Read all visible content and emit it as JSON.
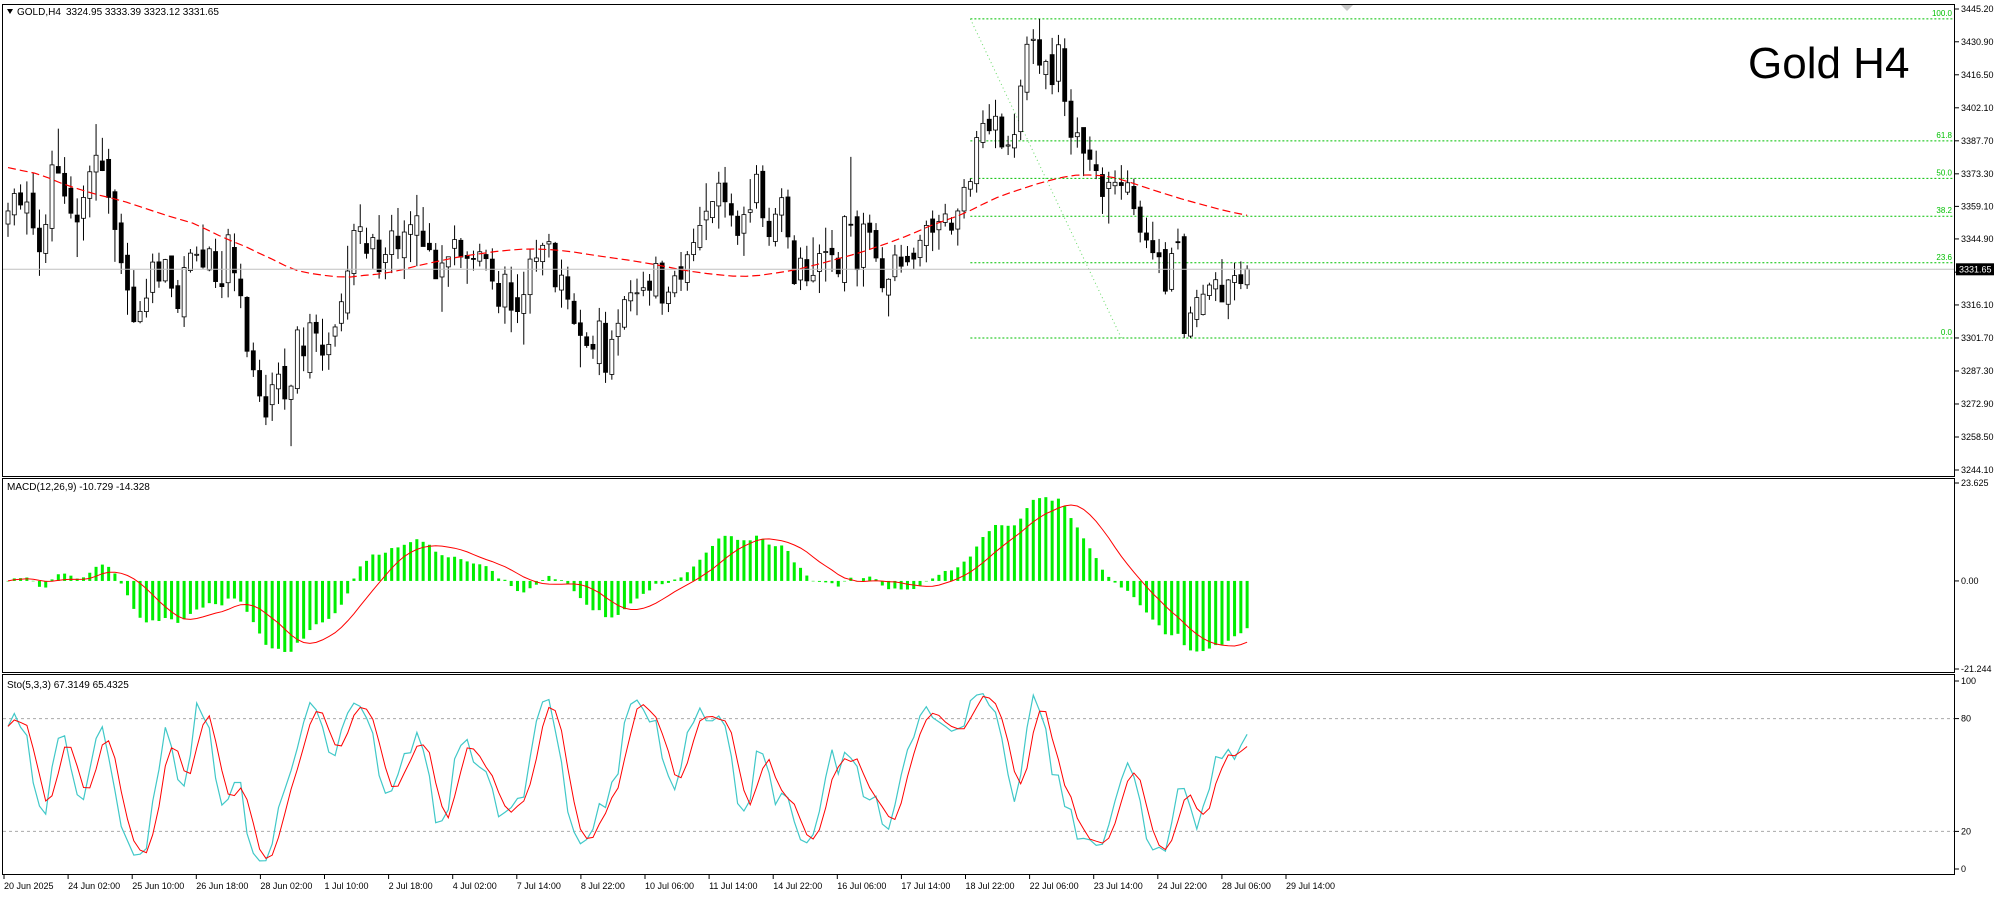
{
  "symbol_header": {
    "symbol": "GOLD,H4",
    "ohlc": "3324.95 3333.39 3323.12 3331.65"
  },
  "chart_title": "Gold H4",
  "current_price": "3331.65",
  "price_axis": [
    "3445.20",
    "3430.90",
    "3416.50",
    "3402.10",
    "3387.70",
    "3373.30",
    "3359.10",
    "3344.90",
    "3330.40",
    "3316.10",
    "3301.70",
    "3287.30",
    "3272.90",
    "3258.50",
    "3244.10"
  ],
  "fib_levels": [
    {
      "label": "100.0",
      "price": 3440.9
    },
    {
      "label": "61.8",
      "price": 3387.7
    },
    {
      "label": "50.0",
      "price": 3371.3
    },
    {
      "label": "38.2",
      "price": 3354.8
    },
    {
      "label": "23.6",
      "price": 3334.5
    },
    {
      "label": "0.0",
      "price": 3301.7
    }
  ],
  "macd": {
    "label": "MACD(12,26,9) -10.729 -14.328",
    "axis": [
      "23.625",
      "0.00",
      "-21.244"
    ]
  },
  "stoch": {
    "label": "Sto(5,3,3) 67.3149 65.4325",
    "axis": [
      "100",
      "80",
      "20",
      "0"
    ]
  },
  "time_axis": [
    "20 Jun 2025",
    "24 Jun 02:00",
    "25 Jun 10:00",
    "26 Jun 18:00",
    "28 Jun 02:00",
    "1 Jul 10:00",
    "2 Jul 18:00",
    "4 Jul 02:00",
    "7 Jul 14:00",
    "8 Jul 22:00",
    "10 Jul 06:00",
    "11 Jul 14:00",
    "14 Jul 22:00",
    "16 Jul 06:00",
    "17 Jul 14:00",
    "18 Jul 22:00",
    "22 Jul 06:00",
    "23 Jul 14:00",
    "24 Jul 22:00",
    "28 Jul 06:00",
    "29 Jul 14:00"
  ],
  "colors": {
    "bull_candle": "#ffffff",
    "bear_candle": "#000000",
    "ma": "#ff0000",
    "fib": "#00c000",
    "macd_hist": "#00ee00",
    "macd_signal": "#ff0000",
    "sto_main": "#40c8c8",
    "sto_signal": "#ff0000",
    "grid_level": "#aaaaaa"
  },
  "chart_data": {
    "type": "candlestick",
    "title": "Gold H4",
    "ylim": [
      3244.1,
      3445.2
    ],
    "points": [
      [
        3351.4,
        3360.7,
        3345.8,
        3357.1
      ],
      [
        3355.4,
        3366.9,
        3350.8,
        3364.7
      ],
      [
        3365.0,
        3368.7,
        3357.7,
        3359.7
      ],
      [
        3356.2,
        3370.0,
        3346.8,
        3361.0
      ],
      [
        3364.9,
        3373.5,
        3346.7,
        3349.7
      ],
      [
        3349.6,
        3357.7,
        3328.8,
        3339.3
      ],
      [
        3338.6,
        3355.6,
        3334.4,
        3351.2
      ],
      [
        3349.5,
        3383.4,
        3343.8,
        3377.2
      ],
      [
        3376.5,
        3393.0,
        3373.9,
        3373.6
      ],
      [
        3373.5,
        3380.6,
        3360.2,
        3363.6
      ],
      [
        3367.0,
        3372.2,
        3353.8,
        3356.1
      ],
      [
        3355.3,
        3362.6,
        3337.0,
        3352.3
      ],
      [
        3353.9,
        3368.2,
        3344.2,
        3363.0
      ],
      [
        3362.6,
        3376.9,
        3354.3,
        3374.2
      ],
      [
        3374.1,
        3395.0,
        3361.6,
        3381.4
      ],
      [
        3378.9,
        3389.0,
        3374.5,
        3374.7
      ],
      [
        3379.6,
        3384.2,
        3355.9,
        3363.0
      ],
      [
        3365.5,
        3366.5,
        3334.9,
        3349.0
      ],
      [
        3351.9,
        3355.9,
        3329.6,
        3334.5
      ],
      [
        3337.8,
        3343.2,
        3311.8,
        3322.6
      ],
      [
        3323.9,
        3331.3,
        3308.3,
        3308.8
      ],
      [
        3308.8,
        3317.8,
        3308.1,
        3313.3
      ],
      [
        3313.2,
        3327.5,
        3310.6,
        3319.1
      ],
      [
        3321.6,
        3338.5,
        3316.9,
        3334.8
      ],
      [
        3334.9,
        3338.9,
        3323.6,
        3326.5
      ],
      [
        3326.6,
        3336.2,
        3325.8,
        3335.9
      ],
      [
        3337.5,
        3337.5,
        3319.5,
        3323.4
      ],
      [
        3324.5,
        3327.0,
        3312.6,
        3314.5
      ],
      [
        3310.9,
        3337.4,
        3306.5,
        3332.4
      ],
      [
        3331.1,
        3340.5,
        3330.2,
        3338.7
      ],
      [
        3337.9,
        3341.6,
        3335.1,
        3338.2
      ],
      [
        3340.1,
        3351.2,
        3332.0,
        3332.6
      ],
      [
        3331.4,
        3341.6,
        3330.8,
        3340.6
      ],
      [
        3339.4,
        3345.0,
        3323.5,
        3326.3
      ],
      [
        3325.4,
        3339.6,
        3319.1,
        3324.1
      ],
      [
        3325.8,
        3349.3,
        3319.4,
        3346.7
      ],
      [
        3341.2,
        3347.3,
        3322.1,
        3330.1
      ],
      [
        3327.4,
        3334.1,
        3314.7,
        3320.1
      ],
      [
        3319.4,
        3319.9,
        3293.3,
        3295.9
      ],
      [
        3296.1,
        3299.7,
        3284.7,
        3287.8
      ],
      [
        3287.5,
        3292.2,
        3273.8,
        3276.4
      ],
      [
        3276.1,
        3285.6,
        3263.7,
        3267.2
      ],
      [
        3272.6,
        3286.6,
        3265.5,
        3281.3
      ],
      [
        3279.5,
        3291.0,
        3272.9,
        3285.9
      ],
      [
        3289.3,
        3297.1,
        3270.4,
        3275.1
      ],
      [
        3274.9,
        3281.3,
        3254.5,
        3280.7
      ],
      [
        3279.6,
        3306.8,
        3277.4,
        3305.2
      ],
      [
        3298.2,
        3306.3,
        3287.2,
        3293.9
      ],
      [
        3286.6,
        3312.2,
        3284.0,
        3308.3
      ],
      [
        3308.5,
        3311.9,
        3295.6,
        3303.8
      ],
      [
        3298.6,
        3310.1,
        3287.4,
        3294.2
      ],
      [
        3294.4,
        3304.1,
        3287.8,
        3298.9
      ],
      [
        3302.5,
        3307.7,
        3297.9,
        3306.5
      ],
      [
        3308.1,
        3321.1,
        3304.6,
        3317.5
      ],
      [
        3312.6,
        3341.9,
        3309.7,
        3330.9
      ],
      [
        3329.8,
        3351.5,
        3324.7,
        3348.6
      ],
      [
        3348.2,
        3360.0,
        3342.7,
        3350.2
      ],
      [
        3342.9,
        3349.8,
        3336.3,
        3338.6
      ],
      [
        3340.6,
        3347.1,
        3331.9,
        3345.5
      ],
      [
        3344.4,
        3355.3,
        3327.6,
        3330.6
      ],
      [
        3334.6,
        3341.2,
        3327.3,
        3338.1
      ],
      [
        3338.1,
        3355.4,
        3330.0,
        3348.4
      ],
      [
        3346.1,
        3358.4,
        3336.2,
        3340.6
      ],
      [
        3336.7,
        3353.0,
        3327.4,
        3347.9
      ],
      [
        3346.9,
        3357.0,
        3334.8,
        3351.1
      ],
      [
        3346.5,
        3364.1,
        3333.0,
        3355.0
      ],
      [
        3348.3,
        3358.8,
        3342.6,
        3341.6
      ],
      [
        3343.0,
        3351.8,
        3339.4,
        3340.2
      ],
      [
        3340.0,
        3343.1,
        3327.4,
        3327.5
      ],
      [
        3328.3,
        3342.2,
        3313.1,
        3334.4
      ],
      [
        3332.7,
        3337.2,
        3324.0,
        3337.1
      ],
      [
        3340.8,
        3350.8,
        3333.4,
        3344.6
      ],
      [
        3344.3,
        3345.3,
        3332.2,
        3337.0
      ],
      [
        3337.7,
        3339.5,
        3325.3,
        3336.4
      ],
      [
        3336.4,
        3339.8,
        3331.1,
        3336.2
      ],
      [
        3335.2,
        3342.8,
        3332.9,
        3339.3
      ],
      [
        3338.1,
        3340.2,
        3331.1,
        3336.3
      ],
      [
        3336.1,
        3340.8,
        3322.8,
        3326.5
      ],
      [
        3325.5,
        3330.9,
        3312.5,
        3315.5
      ],
      [
        3315.2,
        3332.9,
        3307.9,
        3329.5
      ],
      [
        3325.8,
        3332.8,
        3304.2,
        3313.8
      ],
      [
        3319.3,
        3329.5,
        3308.2,
        3313.2
      ],
      [
        3312.4,
        3330.6,
        3298.8,
        3320.6
      ],
      [
        3320.6,
        3340.6,
        3312.3,
        3336.1
      ],
      [
        3335.1,
        3344.5,
        3330.6,
        3336.6
      ],
      [
        3335.0,
        3343.2,
        3329.0,
        3342.1
      ],
      [
        3342.7,
        3347.1,
        3336.8,
        3343.7
      ],
      [
        3343.0,
        3343.6,
        3321.6,
        3324.0
      ],
      [
        3322.6,
        3335.9,
        3314.9,
        3329.1
      ],
      [
        3328.4,
        3332.8,
        3314.2,
        3318.6
      ],
      [
        3317.7,
        3321.2,
        3307.4,
        3308.0
      ],
      [
        3308.3,
        3314.0,
        3288.9,
        3302.8
      ],
      [
        3302.2,
        3304.2,
        3297.4,
        3298.4
      ],
      [
        3298.9,
        3302.7,
        3292.6,
        3296.8
      ],
      [
        3290.5,
        3314.8,
        3285.5,
        3309.1
      ],
      [
        3308.1,
        3313.1,
        3282.1,
        3286.7
      ],
      [
        3285.8,
        3305.0,
        3283.5,
        3301.1
      ],
      [
        3302.3,
        3314.2,
        3294.0,
        3308.1
      ],
      [
        3306.4,
        3320.0,
        3305.3,
        3318.4
      ],
      [
        3317.9,
        3326.9,
        3313.3,
        3321.4
      ],
      [
        3321.1,
        3327.6,
        3311.6,
        3321.4
      ],
      [
        3322.5,
        3330.6,
        3319.9,
        3323.6
      ],
      [
        3326.5,
        3329.6,
        3315.8,
        3322.5
      ],
      [
        3320.0,
        3337.2,
        3318.9,
        3334.2
      ],
      [
        3334.4,
        3335.4,
        3311.8,
        3316.9
      ],
      [
        3316.7,
        3324.1,
        3313.0,
        3321.7
      ],
      [
        3321.4,
        3331.0,
        3319.5,
        3328.8
      ],
      [
        3332.8,
        3339.2,
        3322.2,
        3327.3
      ],
      [
        3325.9,
        3339.6,
        3322.3,
        3338.0
      ],
      [
        3338.1,
        3349.4,
        3335.2,
        3343.3
      ],
      [
        3341.2,
        3358.9,
        3339.9,
        3350.8
      ],
      [
        3353.2,
        3369.2,
        3344.4,
        3357.0
      ],
      [
        3354.2,
        3361.4,
        3351.8,
        3361.2
      ],
      [
        3359.3,
        3374.2,
        3349.4,
        3369.2
      ],
      [
        3369.3,
        3376.3,
        3354.2,
        3361.1
      ],
      [
        3360.3,
        3364.7,
        3350.3,
        3355.3
      ],
      [
        3354.8,
        3357.3,
        3342.3,
        3346.4
      ],
      [
        3347.4,
        3359.0,
        3337.5,
        3355.5
      ],
      [
        3356.5,
        3371.0,
        3352.0,
        3357.6
      ],
      [
        3360.7,
        3377.1,
        3358.1,
        3373.1
      ],
      [
        3374.4,
        3377.0,
        3350.1,
        3354.1
      ],
      [
        3352.6,
        3358.5,
        3341.9,
        3345.9
      ],
      [
        3343.8,
        3358.4,
        3341.6,
        3355.7
      ],
      [
        3355.3,
        3367.0,
        3347.9,
        3362.9
      ],
      [
        3363.2,
        3366.4,
        3340.7,
        3345.8
      ],
      [
        3344.1,
        3346.5,
        3324.8,
        3325.4
      ],
      [
        3327.0,
        3341.2,
        3322.6,
        3336.5
      ],
      [
        3335.9,
        3341.9,
        3324.3,
        3326.6
      ],
      [
        3326.6,
        3345.6,
        3325.9,
        3329.0
      ],
      [
        3330.7,
        3342.5,
        3321.3,
        3338.5
      ],
      [
        3339.3,
        3349.8,
        3326.3,
        3339.4
      ],
      [
        3340.8,
        3348.8,
        3330.5,
        3338.0
      ],
      [
        3336.5,
        3339.2,
        3328.2,
        3329.7
      ],
      [
        3325.9,
        3355.2,
        3322.0,
        3354.6
      ],
      [
        3351.3,
        3380.7,
        3345.9,
        3350.9
      ],
      [
        3354.6,
        3357.3,
        3324.2,
        3331.5
      ],
      [
        3332.5,
        3356.3,
        3324.1,
        3351.4
      ],
      [
        3351.8,
        3355.5,
        3340.5,
        3347.8
      ],
      [
        3348.6,
        3351.8,
        3334.9,
        3336.6
      ],
      [
        3336.3,
        3341.3,
        3321.6,
        3323.6
      ],
      [
        3320.4,
        3327.7,
        3311.1,
        3327.3
      ],
      [
        3328.4,
        3342.3,
        3326.5,
        3337.9
      ],
      [
        3337.0,
        3342.3,
        3330.2,
        3333.0
      ],
      [
        3337.3,
        3341.8,
        3333.2,
        3334.9
      ],
      [
        3338.7,
        3341.1,
        3331.8,
        3336.1
      ],
      [
        3336.8,
        3346.7,
        3332.9,
        3344.3
      ],
      [
        3342.0,
        3352.9,
        3334.7,
        3350.8
      ],
      [
        3353.6,
        3357.3,
        3339.6,
        3347.8
      ],
      [
        3348.9,
        3355.4,
        3340.2,
        3352.5
      ],
      [
        3352.1,
        3360.2,
        3350.3,
        3355.8
      ],
      [
        3351.8,
        3354.4,
        3346.8,
        3348.7
      ],
      [
        3349.2,
        3358.2,
        3342.0,
        3357.1
      ],
      [
        3357.1,
        3371.0,
        3353.8,
        3367.4
      ],
      [
        3366.6,
        3371.3,
        3363.3,
        3369.9
      ],
      [
        3369.0,
        3392.0,
        3365.1,
        3389.1
      ],
      [
        3387.0,
        3401.0,
        3384.5,
        3395.3
      ],
      [
        3397.1,
        3403.7,
        3390.5,
        3392.1
      ],
      [
        3392.4,
        3405.6,
        3384.5,
        3398.4
      ],
      [
        3398.1,
        3399.6,
        3384.1,
        3385.0
      ],
      [
        3385.4,
        3389.9,
        3381.5,
        3385.9
      ],
      [
        3384.6,
        3399.5,
        3380.3,
        3390.4
      ],
      [
        3391.7,
        3414.4,
        3388.0,
        3411.6
      ],
      [
        3408.9,
        3433.2,
        3405.4,
        3429.8
      ],
      [
        3431.5,
        3436.4,
        3421.2,
        3432.0
      ],
      [
        3431.8,
        3440.9,
        3416.9,
        3420.7
      ],
      [
        3416.6,
        3423.1,
        3410.2,
        3422.3
      ],
      [
        3425.3,
        3432.6,
        3408.0,
        3412.2
      ],
      [
        3413.7,
        3433.9,
        3408.9,
        3429.6
      ],
      [
        3427.9,
        3432.4,
        3398.5,
        3404.9
      ],
      [
        3405.0,
        3410.2,
        3381.7,
        3389.2
      ],
      [
        3389.5,
        3397.9,
        3384.7,
        3391.2
      ],
      [
        3393.5,
        3393.5,
        3372.3,
        3382.3
      ],
      [
        3383.7,
        3389.6,
        3374.6,
        3379.6
      ],
      [
        3377.3,
        3383.4,
        3371.0,
        3374.7
      ],
      [
        3373.0,
        3376.1,
        3355.8,
        3363.4
      ],
      [
        3366.9,
        3374.2,
        3351.6,
        3369.6
      ],
      [
        3368.1,
        3374.8,
        3364.3,
        3369.6
      ],
      [
        3369.5,
        3377.1,
        3362.0,
        3368.2
      ],
      [
        3365.3,
        3374.8,
        3364.1,
        3369.4
      ],
      [
        3367.8,
        3371.2,
        3355.3,
        3358.1
      ],
      [
        3358.8,
        3361.6,
        3343.4,
        3347.8
      ],
      [
        3347.5,
        3354.2,
        3340.9,
        3344.4
      ],
      [
        3344.2,
        3352.4,
        3335.9,
        3338.9
      ],
      [
        3338.9,
        3344.9,
        3330.0,
        3337.1
      ],
      [
        3340.3,
        3343.5,
        3320.7,
        3322.1
      ],
      [
        3322.9,
        3341.1,
        3321.9,
        3338.5
      ],
      [
        3343.7,
        3349.4,
        3340.3,
        3343.3
      ],
      [
        3345.9,
        3347.2,
        3301.7,
        3303.6
      ],
      [
        3302.5,
        3315.4,
        3301.7,
        3312.6
      ],
      [
        3309.8,
        3322.7,
        3306.4,
        3319.3
      ],
      [
        3311.9,
        3324.9,
        3311.5,
        3320.8
      ],
      [
        3320.2,
        3325.8,
        3318.3,
        3324.8
      ],
      [
        3323.1,
        3330.4,
        3317.8,
        3327.1
      ],
      [
        3324.7,
        3336.1,
        3319.1,
        3317.4
      ],
      [
        3316.4,
        3327.4,
        3309.9,
        3327.0
      ],
      [
        3325.9,
        3334.5,
        3318.1,
        3328.9
      ],
      [
        3329.3,
        3335.1,
        3323.0,
        3325.4
      ],
      [
        3324.9,
        3333.4,
        3323.1,
        3331.7
      ]
    ],
    "ma": [
      3376.0,
      3374.8,
      3373.6,
      3371.7,
      3369.3,
      3367.3,
      3365.5,
      3363.9,
      3362.5,
      3360.9,
      3359.0,
      3357.1,
      3355.2,
      3353.5,
      3351.8,
      3349.2,
      3346.4,
      3343.9,
      3341.6,
      3338.8,
      3336.2,
      3333.3,
      3331.0,
      3329.8,
      3329.0,
      3328.4,
      3328.3,
      3329.0,
      3329.5,
      3330.4,
      3331.6,
      3333.1,
      3334.4,
      3335.6,
      3336.8,
      3337.8,
      3338.6,
      3339.4,
      3340.0,
      3340.4,
      3340.5,
      3340.3,
      3339.8,
      3339.1,
      3338.2,
      3337.3,
      3336.5,
      3335.7,
      3334.8,
      3333.8,
      3332.7,
      3331.5,
      3330.6,
      3329.8,
      3329.2,
      3328.7,
      3328.6,
      3329.0,
      3329.8,
      3330.7,
      3331.8,
      3333.2,
      3334.7,
      3336.3,
      3337.9,
      3339.6,
      3341.6,
      3343.6,
      3345.8,
      3348.2,
      3350.7,
      3352.8,
      3354.8,
      3357.3,
      3360.2,
      3362.9,
      3365.0,
      3366.9,
      3368.8,
      3370.4,
      3371.8,
      3372.7,
      3372.8,
      3372.5,
      3371.5,
      3369.8,
      3367.9,
      3366.0,
      3364.2,
      3362.4,
      3360.8,
      3359.2,
      3357.7,
      3356.4,
      3355.2
    ]
  }
}
